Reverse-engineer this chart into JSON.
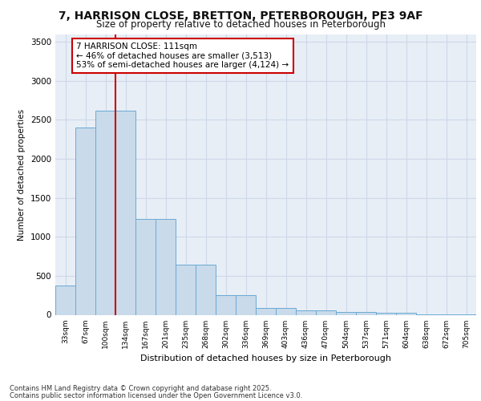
{
  "title_line1": "7, HARRISON CLOSE, BRETTON, PETERBOROUGH, PE3 9AF",
  "title_line2": "Size of property relative to detached houses in Peterborough",
  "xlabel": "Distribution of detached houses by size in Peterborough",
  "ylabel": "Number of detached properties",
  "categories": [
    "33sqm",
    "67sqm",
    "100sqm",
    "134sqm",
    "167sqm",
    "201sqm",
    "235sqm",
    "268sqm",
    "302sqm",
    "336sqm",
    "369sqm",
    "403sqm",
    "436sqm",
    "470sqm",
    "504sqm",
    "537sqm",
    "571sqm",
    "604sqm",
    "638sqm",
    "672sqm",
    "705sqm"
  ],
  "values": [
    375,
    2400,
    2620,
    2620,
    1230,
    1230,
    640,
    640,
    255,
    255,
    90,
    90,
    55,
    55,
    40,
    40,
    30,
    30,
    5,
    5,
    2
  ],
  "bar_color": "#c9daea",
  "bar_edge_color": "#6aaad4",
  "red_line_index": 2.5,
  "annotation_text": "7 HARRISON CLOSE: 111sqm\n← 46% of detached houses are smaller (3,513)\n53% of semi-detached houses are larger (4,124) →",
  "annotation_box_color": "#ffffff",
  "annotation_box_edge": "#cc0000",
  "red_line_color": "#cc0000",
  "grid_color": "#cdd8e8",
  "background_color": "#e8eef6",
  "ylim": [
    0,
    3600
  ],
  "yticks": [
    0,
    500,
    1000,
    1500,
    2000,
    2500,
    3000,
    3500
  ],
  "footer_line1": "Contains HM Land Registry data © Crown copyright and database right 2025.",
  "footer_line2": "Contains public sector information licensed under the Open Government Licence v3.0."
}
